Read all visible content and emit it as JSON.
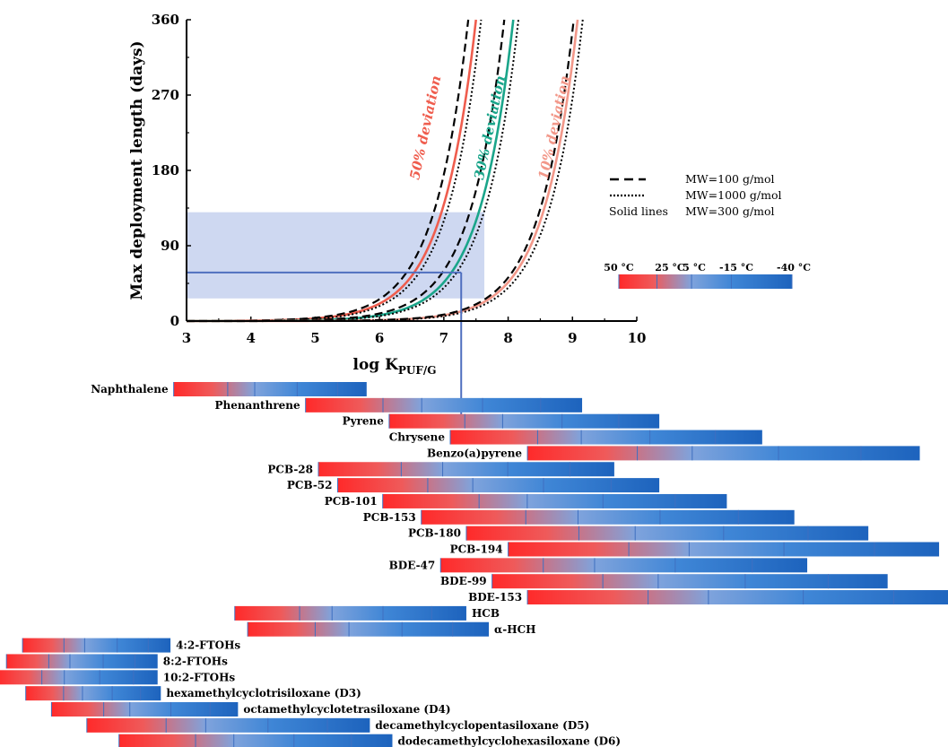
{
  "chart_data": {
    "type": "line",
    "xlabel": "log K",
    "xlabel_sub": "PUF/G",
    "ylabel": "Max deployment length (days)",
    "xlim": [
      3,
      10
    ],
    "ylim": [
      0,
      360
    ],
    "x_ticks": [
      "3",
      "4",
      "5",
      "6",
      "7",
      "8",
      "9",
      "10"
    ],
    "y_ticks": [
      "0",
      "90",
      "180",
      "270",
      "360"
    ],
    "deviation_labels": [
      {
        "text": "50% deviation",
        "color": "#ef5d4e",
        "x": 6.95,
        "y": 230
      },
      {
        "text": "30% deviation",
        "color": "#1aa58a",
        "x": 7.95,
        "y": 230
      },
      {
        "text": "10% deviation",
        "color": "#f2988a",
        "x": 8.95,
        "y": 230
      }
    ],
    "series": [
      {
        "deviation": "50%",
        "color": "#ef5d4e",
        "log_k_at_360_days": [
          7.38,
          7.5,
          7.58
        ]
      },
      {
        "deviation": "30%",
        "color": "#1aa58a",
        "log_k_at_360_days": [
          7.94,
          8.08,
          8.16
        ]
      },
      {
        "deviation": "10%",
        "color": "#f2988a",
        "log_k_at_360_days": [
          9.02,
          9.08,
          9.16
        ]
      }
    ],
    "legend": {
      "placement": "right",
      "entries": [
        {
          "style": "dashed",
          "label": "MW=100 g/mol"
        },
        {
          "style": "dotted",
          "label": "MW=1000 g/mol"
        },
        {
          "style": "solid",
          "key": "Solid lines",
          "label": "MW=300 g/mol"
        }
      ]
    },
    "shaded_band": {
      "y_range": [
        27,
        130
      ],
      "x_max": 7.63,
      "color": "#c5d1ee"
    },
    "guide": {
      "y": 58,
      "x_end": 7.27,
      "color": "#4f6fbf"
    },
    "temperature_scale": {
      "labels": [
        "50 °C",
        "25 °C",
        "5 °C",
        "-15 °C",
        "-40 °C"
      ],
      "gradient": [
        "#ff2a2a",
        "#ef5a5a",
        "#7fa3dc",
        "#3f86d6",
        "#1d63bd"
      ]
    },
    "compound_ranges": [
      {
        "name": "Naphthalene",
        "range": [
          2.8,
          5.8
        ],
        "label_side": "left"
      },
      {
        "name": "Phenanthrene",
        "range": [
          4.85,
          9.15
        ],
        "label_side": "left"
      },
      {
        "name": "Pyrene",
        "range": [
          6.15,
          10.35
        ],
        "label_side": "left"
      },
      {
        "name": "Chrysene",
        "range": [
          7.1,
          11.95
        ],
        "label_side": "left"
      },
      {
        "name": "Benzo(a)pyrene",
        "range": [
          8.3,
          14.4
        ],
        "label_side": "left"
      },
      {
        "name": "PCB-28",
        "range": [
          5.05,
          9.65
        ],
        "label_side": "left"
      },
      {
        "name": "PCB-52",
        "range": [
          5.35,
          10.35
        ],
        "label_side": "left"
      },
      {
        "name": "PCB-101",
        "range": [
          6.05,
          11.4
        ],
        "label_side": "left"
      },
      {
        "name": "PCB-153",
        "range": [
          6.65,
          12.45
        ],
        "label_side": "left"
      },
      {
        "name": "PCB-180",
        "range": [
          7.35,
          13.6
        ],
        "label_side": "left"
      },
      {
        "name": "PCB-194",
        "range": [
          8.0,
          14.7
        ],
        "label_side": "left"
      },
      {
        "name": "BDE-47",
        "range": [
          6.95,
          12.65
        ],
        "label_side": "left"
      },
      {
        "name": "BDE-99",
        "range": [
          7.75,
          13.9
        ],
        "label_side": "left"
      },
      {
        "name": "BDE-153",
        "range": [
          8.3,
          15.0
        ],
        "label_side": "left"
      },
      {
        "name": "HCB",
        "range": [
          3.75,
          7.35
        ],
        "label_side": "right"
      },
      {
        "name": "α-HCH",
        "range": [
          3.95,
          7.7
        ],
        "label_side": "right"
      },
      {
        "name": "4:2-FTOHs",
        "range": [
          0.45,
          2.75
        ],
        "label_side": "right"
      },
      {
        "name": "8:2-FTOHs",
        "range": [
          0.2,
          2.55
        ],
        "label_side": "right"
      },
      {
        "name": "10:2-FTOHs",
        "range": [
          0.05,
          2.55
        ],
        "label_side": "right"
      },
      {
        "name": "hexamethylcyclotrisiloxane (D3)",
        "range": [
          0.5,
          2.6
        ],
        "label_side": "right"
      },
      {
        "name": "octamethylcyclotetrasiloxane (D4)",
        "range": [
          0.9,
          3.8
        ],
        "label_side": "right"
      },
      {
        "name": "decamethylcyclopentasiloxane (D5)",
        "range": [
          1.45,
          5.85
        ],
        "label_side": "right"
      },
      {
        "name": "dodecamethylcyclohexasiloxane (D6)",
        "range": [
          1.95,
          6.2
        ],
        "label_side": "right"
      }
    ]
  }
}
